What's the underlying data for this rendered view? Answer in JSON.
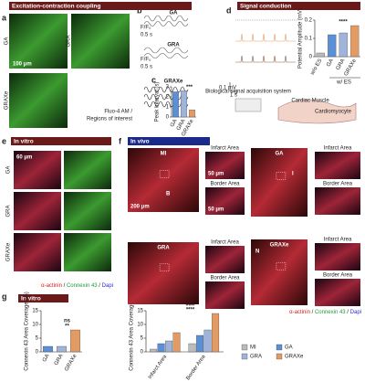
{
  "headers": {
    "a": "Excitation-contraction coupling",
    "d": "Signal conduction",
    "e": "In vitro",
    "f": "In vivo",
    "g_left": "In vitro",
    "g_right": "In vivo"
  },
  "panel_letters": [
    "a",
    "b",
    "c",
    "d",
    "e",
    "f",
    "g"
  ],
  "panel_a": {
    "labels": [
      "GA",
      "GRA",
      "GRAXe"
    ],
    "scale_bar": "100 μm",
    "stain": "Fluo-4 AM /",
    "roi": "Regions of interest"
  },
  "panel_b": {
    "labels": [
      "GA",
      "GRA",
      "GRAXe"
    ],
    "ylabel": "F/F₀",
    "time": "0.5 s"
  },
  "panel_c": {
    "ylabel": "Peak Interval (s)",
    "categories": [
      "GA",
      "GRA",
      "GRAXe"
    ],
    "values": [
      2.5,
      2.6,
      0.7
    ],
    "colors": [
      "#5b8fd6",
      "#9fb4d8",
      "#e39a63"
    ],
    "ylim": [
      0,
      3
    ],
    "yticks": [
      0,
      1,
      2,
      3
    ],
    "significance": [
      "***"
    ]
  },
  "panel_d": {
    "voltage": "0.1 mV",
    "time": "1 s",
    "system": "Biological signal acquisition system",
    "muscle": "Cardiac Muscle",
    "cell": "Cardiomyocyte",
    "ylabel": "Potential Amplitude (mV)",
    "categories": [
      "w/o ES",
      "GA",
      "GRA",
      "GRAXe"
    ],
    "values": [
      0.02,
      0.12,
      0.13,
      0.17
    ],
    "colors": [
      "#bbbbbb",
      "#5b8fd6",
      "#9fb4d8",
      "#e39a63"
    ],
    "ylim": [
      0,
      0.2
    ],
    "yticks": [
      0,
      0.1,
      0.2
    ],
    "significance": [
      "****"
    ],
    "group_label": "w/ ES"
  },
  "panel_e": {
    "labels": [
      "GA",
      "GRA",
      "GRAXe"
    ],
    "scale_bar": "60 μm"
  },
  "panel_f": {
    "groups": [
      "MI",
      "GA",
      "GRA",
      "GRAXe"
    ],
    "infarct": "Infarct Area",
    "border": "Border Area",
    "scale_small": "50 μm",
    "scale_large": "200 μm",
    "regions": [
      "I",
      "B",
      "N"
    ]
  },
  "stain_legend": [
    {
      "text": "α-actinin",
      "color": "#d02020"
    },
    {
      "text": " / ",
      "color": "#222222"
    },
    {
      "text": "Connexin 43",
      "color": "#1f9a3a"
    },
    {
      "text": " / ",
      "color": "#222222"
    },
    {
      "text": "Dapi",
      "color": "#2a2ad0"
    }
  ],
  "panel_g_left": {
    "ylabel": "Connexin 43 Area Coverage (%)",
    "categories": [
      "GA",
      "GRA",
      "GRAXe"
    ],
    "values": [
      2,
      2,
      8
    ],
    "colors": [
      "#5b8fd6",
      "#9fb4d8",
      "#e39a63"
    ],
    "ylim": [
      0,
      15
    ],
    "yticks": [
      0,
      5,
      10,
      15
    ],
    "significance": [
      "**",
      "ns"
    ]
  },
  "panel_g_right": {
    "ylabel": "Connexin 43 Area Coverage (%)",
    "groups": [
      "Infarct Area",
      "Border Area"
    ],
    "series": [
      {
        "name": "MI",
        "color": "#bbbbbb",
        "values": [
          1,
          3
        ]
      },
      {
        "name": "GA",
        "color": "#5b8fd6",
        "values": [
          3,
          6
        ]
      },
      {
        "name": "GRA",
        "color": "#9fb4d8",
        "values": [
          4,
          8
        ]
      },
      {
        "name": "GRAXe",
        "color": "#e39a63",
        "values": [
          7,
          14
        ]
      }
    ],
    "ylim": [
      0,
      15
    ],
    "yticks": [
      0,
      5,
      10,
      15
    ],
    "significance": [
      "****",
      "###",
      "&&"
    ]
  }
}
